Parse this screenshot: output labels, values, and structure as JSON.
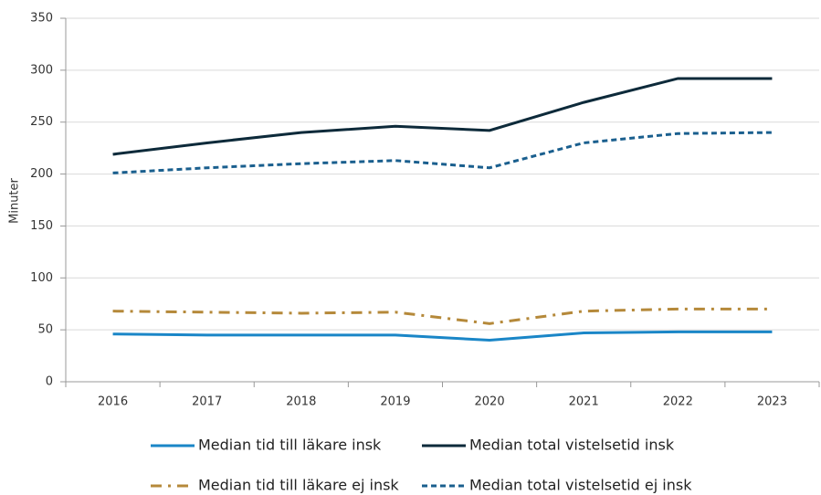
{
  "chart_data": {
    "type": "line",
    "y_label": "Minuter",
    "categories": [
      "2016",
      "2017",
      "2018",
      "2019",
      "2020",
      "2021",
      "2022",
      "2023"
    ],
    "series": [
      {
        "name": "Median tid till läkare insk",
        "color": "#1a86c7",
        "dash": "solid",
        "values": [
          46,
          45,
          45,
          45,
          40,
          47,
          48,
          48
        ]
      },
      {
        "name": "Median total vistelsetid insk",
        "color": "#0d2a3a",
        "dash": "solid",
        "values": [
          219,
          230,
          240,
          246,
          242,
          269,
          292,
          292
        ]
      },
      {
        "name": "Median tid till läkare ej insk",
        "color": "#b5893a",
        "dash": "dashdot",
        "values": [
          68,
          67,
          66,
          67,
          56,
          68,
          70,
          70
        ]
      },
      {
        "name": "Median total vistelsetid ej insk",
        "color": "#1a5f8e",
        "dash": "dashed",
        "values": [
          201,
          206,
          210,
          213,
          206,
          230,
          239,
          240
        ]
      }
    ],
    "ylim": [
      0,
      350
    ],
    "yticks": [
      0,
      50,
      100,
      150,
      200,
      250,
      300,
      350
    ],
    "grid": true
  }
}
